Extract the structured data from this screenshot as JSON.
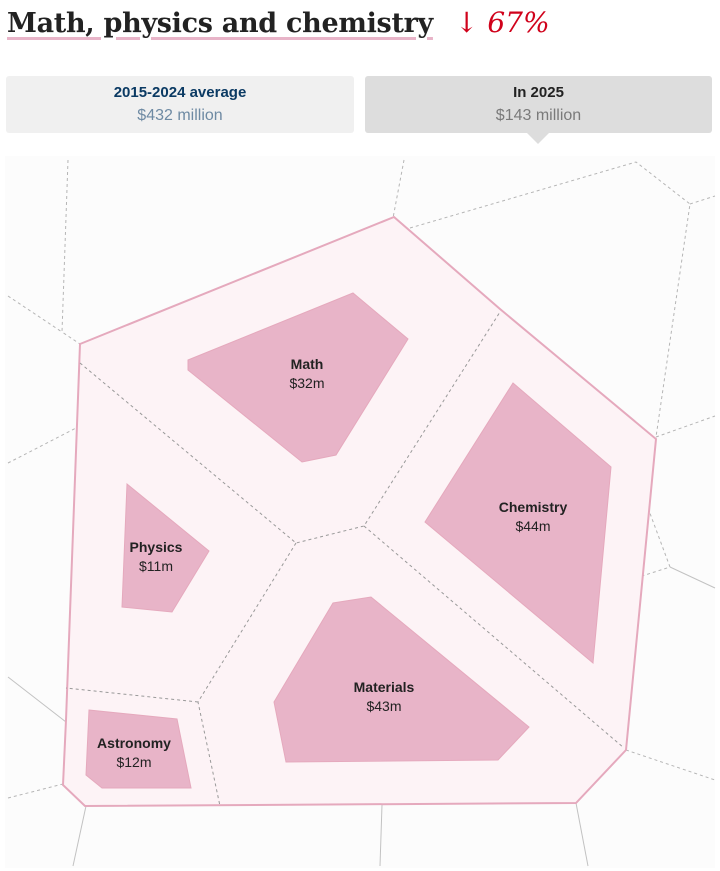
{
  "header": {
    "title": "Math, physics and chemistry",
    "change": "↓ 67%"
  },
  "tabs": [
    {
      "label": "2015-2024 average",
      "value": "$432 million"
    },
    {
      "label": "In 2025",
      "value": "$143 million"
    }
  ],
  "colors": {
    "cell_fill": "#e8b4c8",
    "group_fill": "#fdf3f6",
    "group_border": "#e5a9bd",
    "down_arrow": "#d0021b"
  },
  "chart_data": {
    "type": "voronoi-treemap",
    "title": "Math, physics and chemistry",
    "total_2025": "$143 million",
    "average_2015_2024": "$432 million",
    "change": "↓ 67%",
    "categories": [
      "Math",
      "Chemistry",
      "Physics",
      "Materials",
      "Astronomy"
    ],
    "values_m": [
      32,
      44,
      11,
      43,
      12
    ],
    "labels": [
      "$32m",
      "$44m",
      "$11m",
      "$43m",
      "$12m"
    ]
  }
}
